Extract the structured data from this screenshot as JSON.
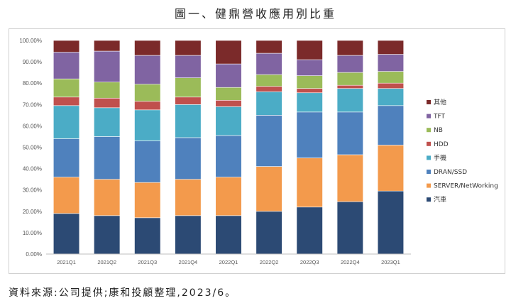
{
  "figure": {
    "title": "圖一、健鼎營收應用別比重",
    "source": "資料來源:公司提供;康和投顧整理,2023/6。"
  },
  "chart_data": {
    "type": "bar",
    "stacked": true,
    "categories": [
      "2021Q1",
      "2021Q2",
      "2021Q3",
      "2021Q4",
      "2022Q1",
      "2022Q2",
      "2022Q3",
      "2022Q4",
      "2023Q1"
    ],
    "ylim": [
      0,
      100
    ],
    "yticks": [
      "0.00%",
      "10.00%",
      "20.00%",
      "30.00%",
      "40.00%",
      "50.00%",
      "60.00%",
      "70.00%",
      "80.00%",
      "90.00%",
      "100.00%"
    ],
    "grid": false,
    "legend_position": "right",
    "series": [
      {
        "name": "汽車",
        "color": "#2c4a74",
        "values": [
          19,
          18,
          17,
          18,
          18,
          20,
          22,
          24.5,
          29.5
        ]
      },
      {
        "name": "SERVER/NetWorking",
        "color": "#f39a4c",
        "values": [
          17,
          17,
          16.5,
          17,
          18,
          21,
          23,
          22,
          21.5
        ]
      },
      {
        "name": "DRAN/SSD",
        "color": "#4f81bd",
        "values": [
          18,
          20,
          19.5,
          19.5,
          19.5,
          24,
          21.5,
          20,
          18.5
        ]
      },
      {
        "name": "手機",
        "color": "#4bacc6",
        "values": [
          15.5,
          13.5,
          14.5,
          15.5,
          13.5,
          11,
          9,
          11,
          8
        ]
      },
      {
        "name": "HDD",
        "color": "#c0504d",
        "values": [
          4,
          4.5,
          4,
          3.5,
          3,
          2.5,
          2,
          1.5,
          2.5
        ]
      },
      {
        "name": "NB",
        "color": "#9bbb59",
        "values": [
          8.5,
          7.5,
          8,
          9,
          6,
          5.5,
          6,
          6,
          5.5
        ]
      },
      {
        "name": "TFT",
        "color": "#8064a2",
        "values": [
          12.5,
          14.5,
          13.5,
          10.5,
          11,
          10,
          7.5,
          8,
          8
        ]
      },
      {
        "name": "其他",
        "color": "#7b2a2a",
        "values": [
          5.5,
          5,
          7,
          7,
          11,
          6,
          9,
          7,
          6.5
        ]
      }
    ],
    "legend_order": [
      "其他",
      "TFT",
      "NB",
      "HDD",
      "手機",
      "DRAN/SSD",
      "SERVER/NetWorking",
      "汽車"
    ]
  }
}
